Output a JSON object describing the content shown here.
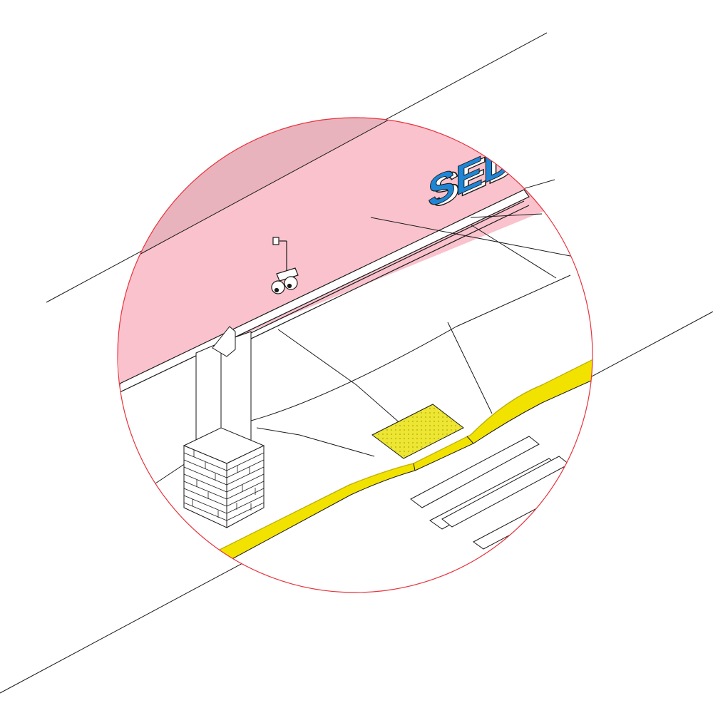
{
  "illustration": {
    "signage": {
      "text": "SED"
    },
    "colors": {
      "background": "#ffffff",
      "lens_fill": "#f9c2cc",
      "lens_outline": "#e8323c",
      "line": "#1a1a1a",
      "curb": "#f2e200",
      "curb_edge": "#c9b800",
      "tactile_pad": "#ede633",
      "sign_blue": "#1f86d6",
      "sign_side": "#ffffff"
    },
    "icons": [
      "security-camera-icon",
      "brick-pillar",
      "tactile-paving-pad",
      "crosswalk-stripes"
    ]
  }
}
